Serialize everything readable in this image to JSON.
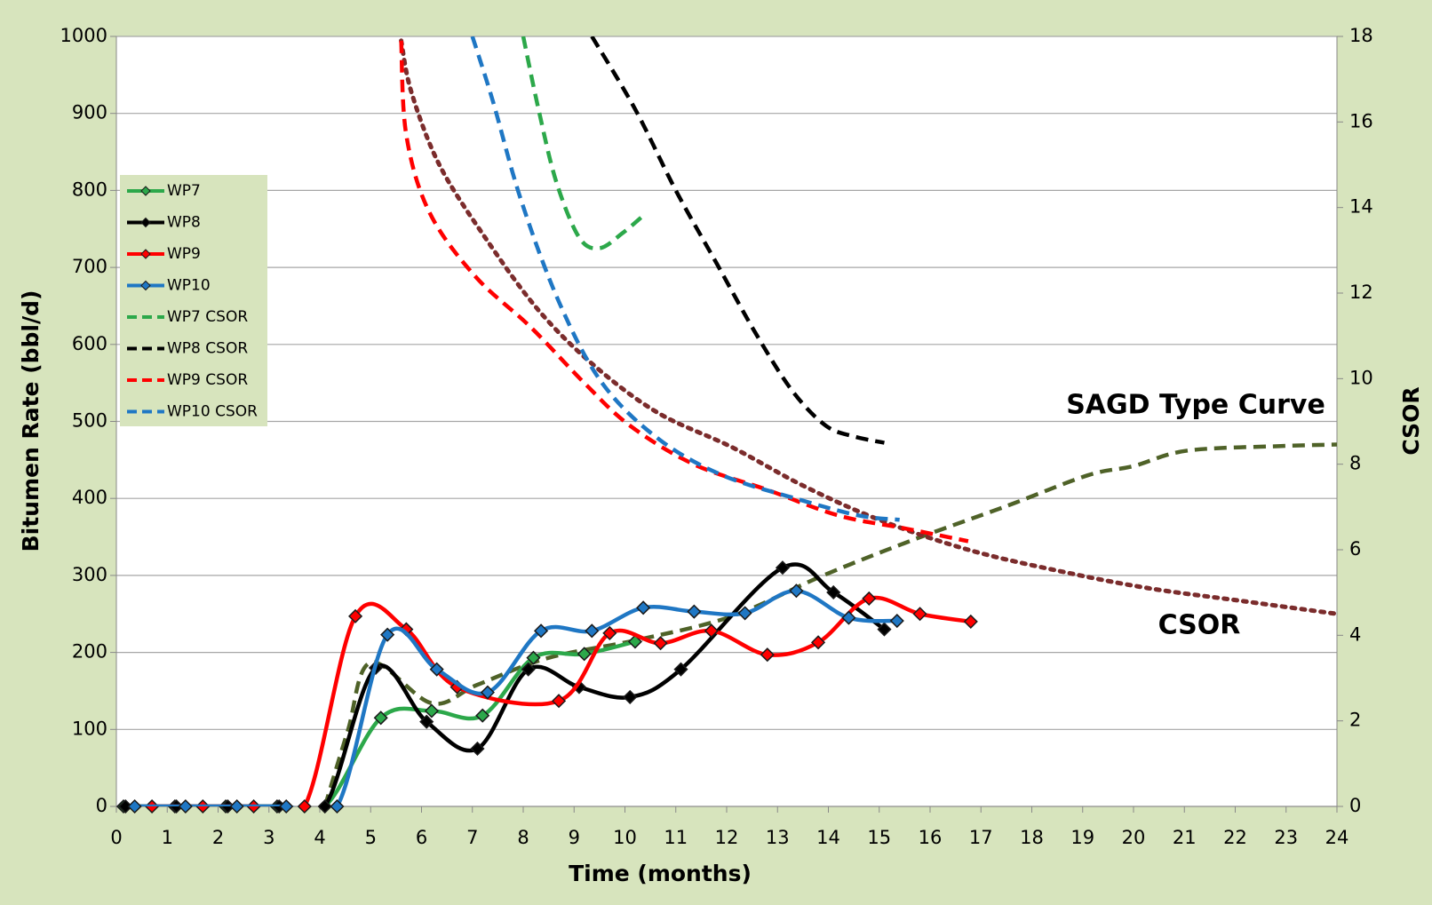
{
  "chart_data": {
    "type": "line",
    "xlabel": "Time (months)",
    "ylabel": "Bitumen Rate (bbl/d)",
    "y2label": "CSOR",
    "xlim": [
      0,
      24
    ],
    "xticks": [
      0,
      1,
      2,
      3,
      4,
      5,
      6,
      7,
      8,
      9,
      10,
      11,
      12,
      13,
      14,
      15,
      16,
      17,
      18,
      19,
      20,
      21,
      22,
      23,
      24
    ],
    "ylim": [
      0,
      1000
    ],
    "yticks": [
      0,
      100,
      200,
      300,
      400,
      500,
      600,
      700,
      800,
      900,
      1000
    ],
    "y2lim": [
      0,
      18
    ],
    "y2ticks": [
      0,
      2,
      4,
      6,
      8,
      10,
      12,
      14,
      16,
      18
    ],
    "grid": true,
    "legend": "upper left",
    "series": [
      {
        "name": "WP7",
        "color": "#2ca84a",
        "style": "solid",
        "markers": true,
        "x": [
          0.14,
          1.15,
          2.15,
          3.16,
          4.1,
          5.2,
          6.2,
          7.2,
          8.2,
          9.2,
          10.2
        ],
        "values": [
          0,
          0,
          0,
          0,
          0,
          115,
          124,
          118,
          193,
          198,
          214
        ]
      },
      {
        "name": "WP8",
        "color": "#000000",
        "style": "solid",
        "markers": true,
        "x": [
          0.18,
          1.18,
          2.19,
          3.2,
          4.1,
          5.1,
          6.1,
          7.1,
          8.1,
          9.1,
          10.1,
          11.1,
          13.1,
          14.1,
          15.1
        ],
        "values": [
          0,
          0,
          0,
          0,
          0,
          180,
          110,
          75,
          178,
          155,
          142,
          178,
          310,
          278,
          230
        ]
      },
      {
        "name": "WP9",
        "color": "#ff0000",
        "style": "solid",
        "markers": true,
        "x": [
          0.7,
          1.7,
          2.7,
          3.7,
          4.7,
          5.7,
          6.7,
          8.7,
          9.7,
          10.7,
          11.7,
          12.8,
          13.8,
          14.8,
          15.8,
          16.8
        ],
        "values": [
          0,
          0,
          0,
          0,
          247,
          230,
          155,
          137,
          225,
          212,
          228,
          197,
          213,
          270,
          250,
          240
        ]
      },
      {
        "name": "WP10",
        "color": "#1f77c4",
        "style": "solid",
        "markers": true,
        "x": [
          0.36,
          1.36,
          2.37,
          3.34,
          4.34,
          5.33,
          6.3,
          7.3,
          8.35,
          9.35,
          10.36,
          11.36,
          12.36,
          13.37,
          14.4,
          15.35
        ],
        "values": [
          0,
          0,
          0,
          0,
          0,
          223,
          178,
          148,
          228,
          228,
          258,
          253,
          251,
          280,
          245,
          241
        ]
      },
      {
        "name": "WP7 CSOR",
        "color": "#2ca84a",
        "style": "dashed",
        "markers": false,
        "axis": "y2",
        "x": [
          8.0,
          8.3,
          8.65,
          9.1,
          9.5,
          9.95,
          10.35
        ],
        "values": [
          18,
          16.3,
          14.6,
          13.3,
          13.05,
          13.4,
          13.8
        ]
      },
      {
        "name": "WP8 CSOR",
        "color": "#000000",
        "style": "dashed",
        "markers": false,
        "axis": "y2",
        "x": [
          9.35,
          10.2,
          11.0,
          11.8,
          12.6,
          13.3,
          13.95,
          14.5,
          15.1
        ],
        "values": [
          18,
          16.3,
          14.4,
          12.7,
          11.0,
          9.7,
          8.9,
          8.65,
          8.5
        ]
      },
      {
        "name": "WP9 CSOR",
        "color": "#ff0000",
        "style": "dashed",
        "markers": false,
        "axis": "y2",
        "x": [
          5.6,
          5.7,
          6.15,
          7.05,
          8.15,
          9.2,
          10.1,
          11.35,
          12.8,
          14.2,
          15.5,
          16.75
        ],
        "values": [
          17.9,
          15.7,
          13.9,
          12.4,
          11.2,
          9.9,
          8.9,
          8.0,
          7.4,
          6.8,
          6.5,
          6.2
        ]
      },
      {
        "name": "WP10 CSOR",
        "color": "#1f77c4",
        "style": "dashed",
        "markers": false,
        "axis": "y2",
        "x": [
          7.0,
          7.4,
          7.95,
          8.7,
          9.55,
          10.65,
          11.9,
          13.35,
          14.6,
          15.4
        ],
        "values": [
          18,
          16.5,
          14.2,
          11.8,
          9.9,
          8.6,
          7.75,
          7.2,
          6.8,
          6.7
        ]
      }
    ],
    "type_curves": [
      {
        "label": "SAGD Type Curve",
        "color": "#4f6228",
        "style": "dashed",
        "x": [
          4.1,
          4.55,
          5.0,
          6.2,
          7.1,
          8.5,
          10.3,
          12.1,
          13.9,
          15.7,
          17.5,
          19.1,
          20.0,
          21.05,
          22.9,
          24
        ],
        "values": [
          0,
          98,
          187,
          134,
          158,
          193,
          217,
          247,
          300,
          347,
          390,
          430,
          442,
          462,
          468,
          470
        ]
      },
      {
        "label": "CSOR",
        "color": "#7b2c2c",
        "style": "dotted",
        "axis": "y2",
        "x": [
          5.6,
          5.8,
          6.35,
          7.25,
          8.3,
          9.4,
          10.65,
          12.1,
          13.5,
          15.0,
          16.75,
          18.55,
          20.3,
          22.15,
          24.0
        ],
        "values": [
          17.9,
          16.7,
          15.0,
          13.3,
          11.6,
          10.3,
          9.2,
          8.4,
          7.5,
          6.7,
          6.0,
          5.5,
          5.1,
          4.8,
          4.5
        ]
      }
    ]
  }
}
